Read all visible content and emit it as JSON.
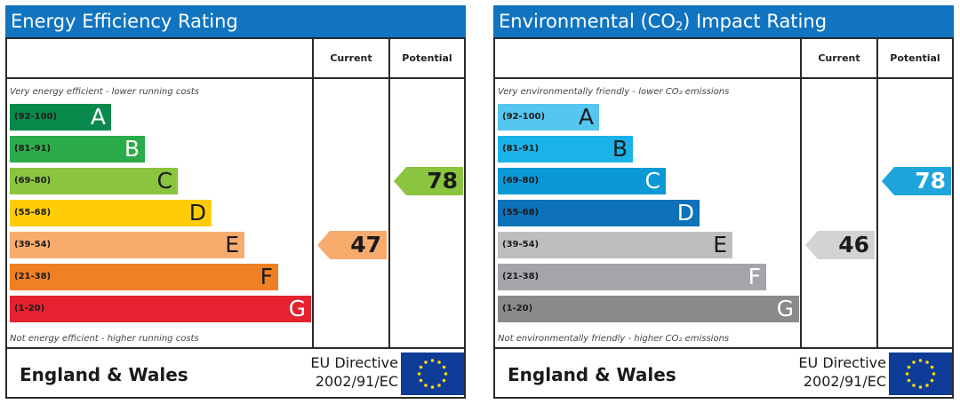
{
  "charts": [
    {
      "title": "Energy Efficiency Rating",
      "headers": {
        "current": "Current",
        "potential": "Potential"
      },
      "note_top": "Very energy efficient - lower running costs",
      "note_bottom": "Not energy efficient - higher running costs",
      "bands": [
        {
          "range": "(92-100)",
          "letter": "A",
          "color": "#098a4c"
        },
        {
          "range": "(81-91)",
          "letter": "B",
          "color": "#2bab4a"
        },
        {
          "range": "(69-80)",
          "letter": "C",
          "color": "#8bc43f"
        },
        {
          "range": "(55-68)",
          "letter": "D",
          "color": "#ffcc06"
        },
        {
          "range": "(39-54)",
          "letter": "E",
          "color": "#f7ac6e"
        },
        {
          "range": "(21-38)",
          "letter": "F",
          "color": "#ef8023"
        },
        {
          "range": "(1-20)",
          "letter": "G",
          "color": "#e62230"
        }
      ],
      "current": {
        "value": "47",
        "band": "E",
        "color": "#f7ac6e"
      },
      "potential": {
        "value": "78",
        "band": "C",
        "color": "#8bc43f"
      },
      "region": "England & Wales",
      "directive_line1": "EU Directive",
      "directive_line2": "2002/91/EC"
    },
    {
      "title_main": "Environmental (CO",
      "title_sub": "2",
      "title_end": ") Impact Rating",
      "headers": {
        "current": "Current",
        "potential": "Potential"
      },
      "note_top": "Very environmentally friendly - lower CO₂ emissions",
      "note_bottom": "Not environmentally friendly - higher CO₂ emissions",
      "bands": [
        {
          "range": "(92-100)",
          "letter": "A",
          "color": "#55c6f0"
        },
        {
          "range": "(81-91)",
          "letter": "B",
          "color": "#1ab3e9"
        },
        {
          "range": "(69-80)",
          "letter": "C",
          "color": "#0b98d6"
        },
        {
          "range": "(55-68)",
          "letter": "D",
          "color": "#0d72b9"
        },
        {
          "range": "(39-54)",
          "letter": "E",
          "color": "#bdbec0"
        },
        {
          "range": "(21-38)",
          "letter": "F",
          "color": "#a3a5a8"
        },
        {
          "range": "(1-20)",
          "letter": "G",
          "color": "#888a8c"
        }
      ],
      "current": {
        "value": "46",
        "band": "E",
        "color": "#d2d3d5"
      },
      "potential": {
        "value": "78",
        "band": "C",
        "color": "#1ea5dc"
      },
      "region": "England & Wales",
      "directive_line1": "EU Directive",
      "directive_line2": "2002/91/EC"
    }
  ],
  "icons": {
    "flag": "eu-flag-icon"
  }
}
